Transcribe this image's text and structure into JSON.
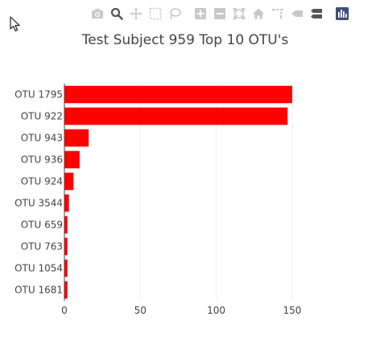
{
  "modebar": {
    "buttons": [
      {
        "icon": "camera-icon",
        "label": "Download plot as a png"
      },
      {
        "icon": "zoom-icon",
        "label": "Zoom"
      },
      {
        "icon": "pan-icon",
        "label": "Pan"
      },
      {
        "icon": "box-select-icon",
        "label": "Box Select"
      },
      {
        "icon": "lasso-select-icon",
        "label": "Lasso Select"
      },
      {
        "icon": "zoom-in-icon",
        "label": "Zoom in"
      },
      {
        "icon": "zoom-out-icon",
        "label": "Zoom out"
      },
      {
        "icon": "autoscale-icon",
        "label": "Autoscale"
      },
      {
        "icon": "reset-axes-icon",
        "label": "Reset axes"
      },
      {
        "icon": "spike-lines-icon",
        "label": "Toggle Spike Lines"
      },
      {
        "icon": "hover-closest-icon",
        "label": "Show closest data on hover"
      },
      {
        "icon": "hover-compare-icon",
        "label": "Compare data on hover"
      },
      {
        "icon": "plotly-logo-icon",
        "label": "Produced with Plotly"
      }
    ]
  },
  "chart_data": {
    "type": "bar",
    "orientation": "horizontal",
    "title": "Test Subject 959 Top 10 OTU's",
    "categories": [
      "OTU 1795",
      "OTU 922",
      "OTU 943",
      "OTU 936",
      "OTU 924",
      "OTU 3544",
      "OTU 659",
      "OTU 763",
      "OTU 1054",
      "OTU 1681"
    ],
    "values": [
      150,
      147,
      16,
      10,
      6,
      3,
      2,
      2,
      2,
      2
    ],
    "xlim": [
      0,
      158
    ],
    "xticks": [
      0,
      50,
      100,
      150
    ],
    "xlabel": "",
    "ylabel": "",
    "grid": true,
    "legend": "none",
    "bar_color": "#ff0000",
    "grid_color": "#eeeeee",
    "text_color": "#444444",
    "icon_color": "#c8c8c8",
    "logo_color": "#3f4f75"
  }
}
